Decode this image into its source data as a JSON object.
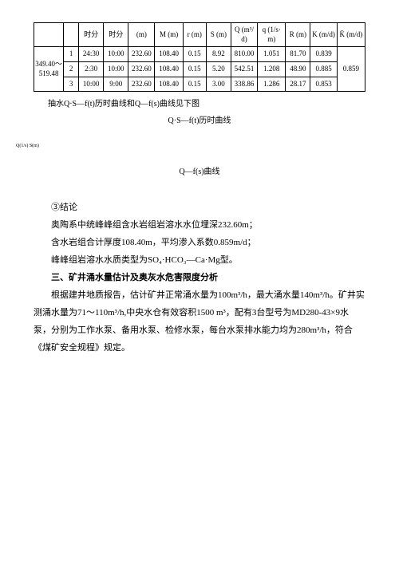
{
  "table": {
    "headers": [
      "",
      "",
      "时分",
      "时分",
      "(m)",
      "M (m)",
      "r (m)",
      "S (m)",
      "Q (m³/d)",
      "q (1/s·m)",
      "R (m)",
      "K (m/d)",
      "K̄ (m/d)"
    ],
    "leftHeader": "349.40～519.48",
    "rows": [
      {
        "n": "1",
        "c": [
          "24:30",
          "10:00",
          "232.60",
          "108.40",
          "0.15",
          "8.92",
          "810.00",
          "1.051",
          "81.70",
          "0.839"
        ]
      },
      {
        "n": "2",
        "c": [
          "2:30",
          "10:00",
          "232.60",
          "108.40",
          "0.15",
          "5.20",
          "542.51",
          "1.208",
          "48.90",
          "0.885"
        ]
      },
      {
        "n": "3",
        "c": [
          "10:00",
          "9:00",
          "232.60",
          "108.40",
          "0.15",
          "3.00",
          "338.86",
          "1.286",
          "28.17",
          "0.853"
        ]
      }
    ],
    "kbar": "0.859"
  },
  "caption1": "抽水Q·S—f(t)历时曲线和Q—f(s)曲线见下图",
  "caption2": "Q·S—f(t)历时曲线",
  "smallLabel": "Q(1/s) S(m)",
  "caption3": "Q—f(s)曲线",
  "para": {
    "p0": "③结论",
    "p1": "奥陶系中统峰峰组含水岩组岩溶水水位埋深232.60m；",
    "p2": "含水岩组合计厚度108.40m，平均渗入系数0.859m/d；",
    "p3": "峰峰组岩溶水水质类型为SO₄·HCO₃—Ca·Mg型。",
    "h1": "三、矿井涌水量估计及奥灰水危害限度分析",
    "p4": "根据建井地质报告，估计矿井正常涌水量为100m³/h，最大涌水量140m³/h。矿井实测涌水量为71～110m³/h,中央水仓有效容积1500 m³，配有3台型号为MD280-43×9水泵，分别为工作水泵、备用水泵、检修水泵，每台水泵排水能力均为280m³/h，符合《煤矿安全规程》规定。"
  }
}
